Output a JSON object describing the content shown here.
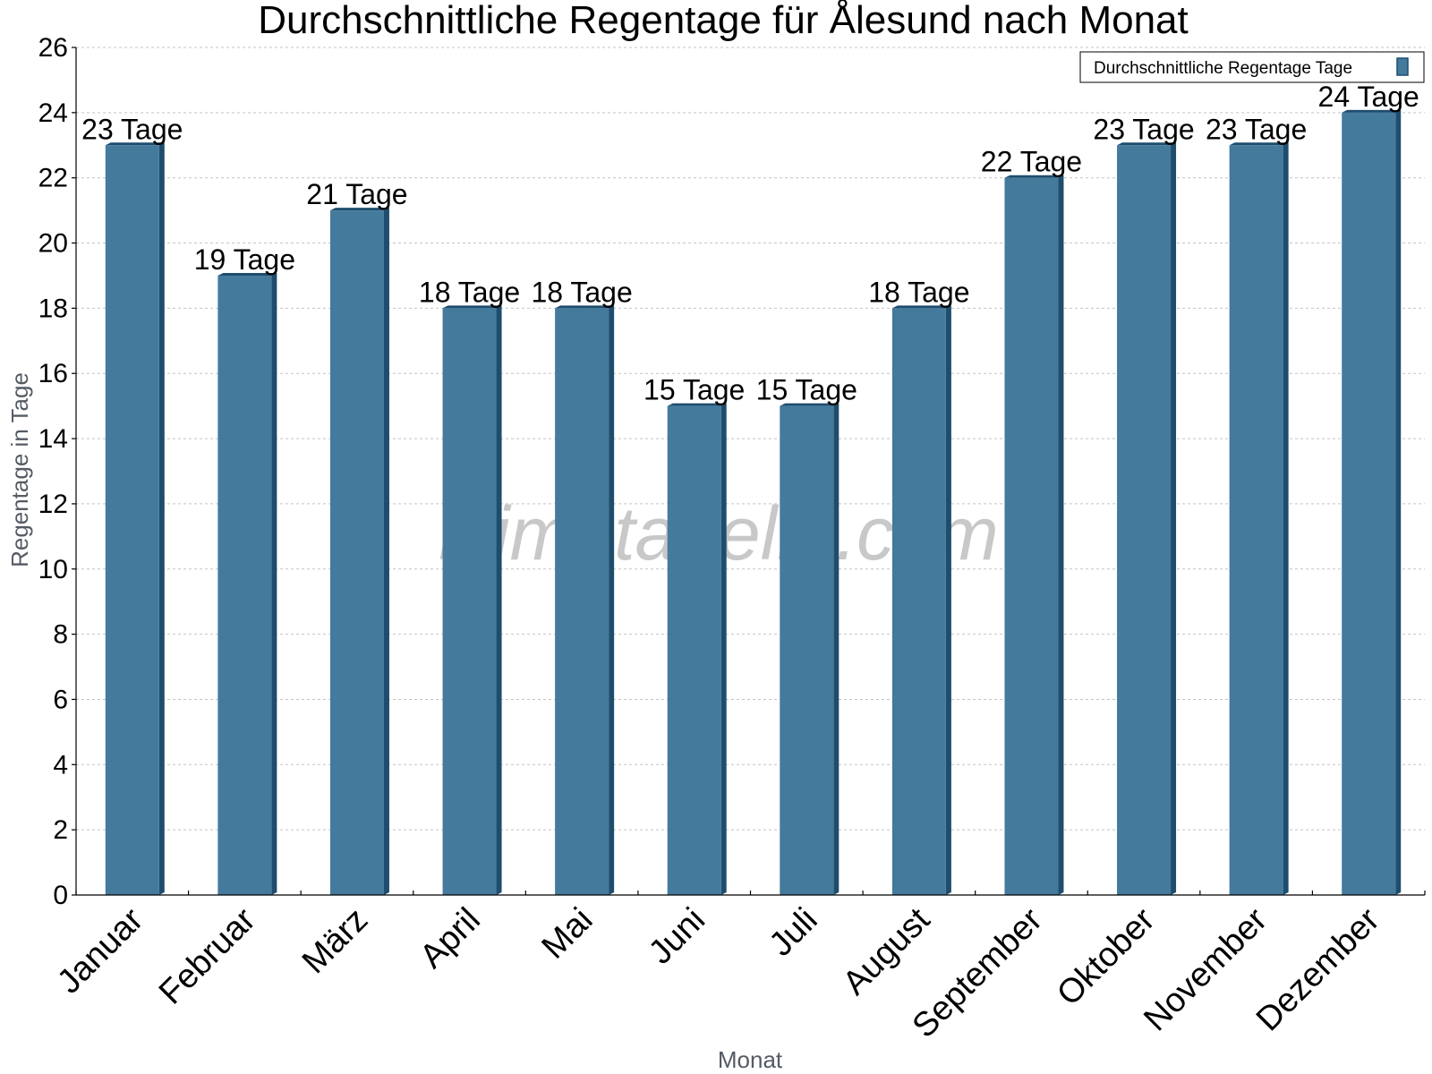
{
  "chart_data": {
    "type": "bar",
    "title": "Durchschnittliche Regentage für Ålesund nach Monat",
    "xlabel": "Monat",
    "ylabel": "Regentage in Tage",
    "ylim": [
      0,
      26
    ],
    "yticks": [
      0,
      2,
      4,
      6,
      8,
      10,
      12,
      14,
      16,
      18,
      20,
      22,
      24,
      26
    ],
    "grid": true,
    "legend_position": "top-right",
    "categories": [
      "Januar",
      "Februar",
      "März",
      "April",
      "Mai",
      "Juni",
      "Juli",
      "August",
      "September",
      "Oktober",
      "November",
      "Dezember"
    ],
    "series": [
      {
        "name": "Durchschnittliche Regentage Tage",
        "values": [
          23,
          19,
          21,
          18,
          18,
          15,
          15,
          18,
          22,
          23,
          23,
          24
        ],
        "data_labels": [
          "23 Tage",
          "19 Tage",
          "21 Tage",
          "18 Tage",
          "18 Tage",
          "15 Tage",
          "15 Tage",
          "18 Tage",
          "22 Tage",
          "23 Tage",
          "23 Tage",
          "24 Tage"
        ],
        "color": "#447a9c",
        "side_color": "#1e4d6e"
      }
    ],
    "watermark": "klimatabelle.com"
  }
}
